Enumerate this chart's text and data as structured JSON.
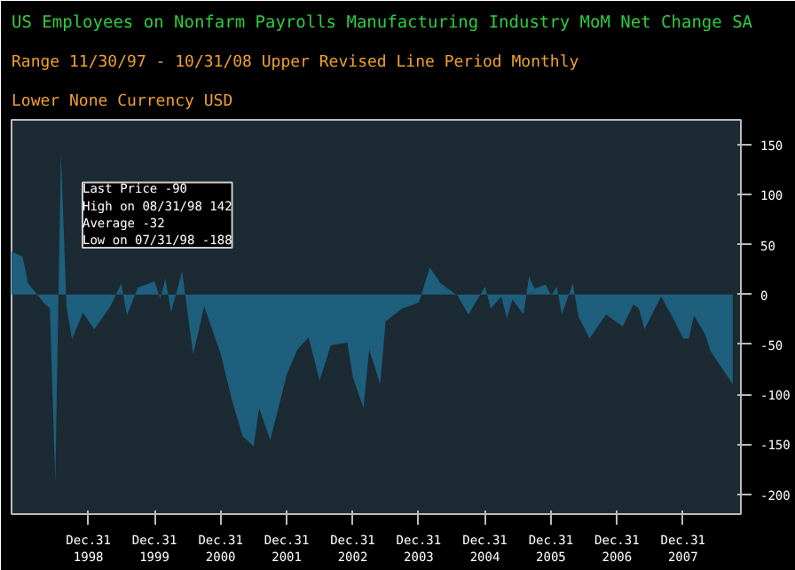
{
  "chart_data": {
    "type": "area",
    "title": "US Employees on Nonfarm Payrolls Manufacturing Industry MoM Net Change SA",
    "annotations": [
      "Range 11/30/97 - 10/31/08",
      "Upper Revised Line",
      "Period Monthly",
      "Lower None",
      "Currency USD",
      "Last Price -90\nHigh on 08/31/98 142\nAverage -32\nLow on 07/31/98 -188"
    ],
    "x": [
      "1997-11",
      "1998-01",
      "1998-02",
      "1998-05",
      "1998-06",
      "1998-07",
      "1998-08",
      "1998-09",
      "1998-10",
      "1998-12",
      "1999-02",
      "1999-05",
      "1999-07",
      "1999-08",
      "1999-10",
      "2000-01",
      "2000-02",
      "2000-03",
      "2000-04",
      "2000-06",
      "2000-08",
      "2000-10",
      "2001-01",
      "2001-03",
      "2001-05",
      "2001-07",
      "2001-08",
      "2001-10",
      "2002-01",
      "2002-03",
      "2002-05",
      "2002-07",
      "2002-09",
      "2002-12",
      "2003-01",
      "2003-03",
      "2003-04",
      "2003-06",
      "2003-07",
      "2003-10",
      "2004-01",
      "2004-03",
      "2004-05",
      "2004-08",
      "2004-10",
      "2005-01",
      "2005-02",
      "2005-04",
      "2005-05",
      "2005-06",
      "2005-08",
      "2005-09",
      "2005-10",
      "2005-12",
      "2006-01",
      "2006-02",
      "2006-03",
      "2006-05",
      "2006-06",
      "2006-08",
      "2006-11",
      "2007-02",
      "2007-04",
      "2007-05",
      "2007-06",
      "2007-09",
      "2007-11",
      "2008-01",
      "2008-02",
      "2008-03",
      "2008-05",
      "2008-06",
      "2008-10"
    ],
    "series": [
      {
        "color": "#1d5f7c",
        "values": [
          43,
          38,
          11,
          -9,
          -14,
          -188,
          142,
          -12,
          -45,
          -18,
          -35,
          -12,
          11,
          -21,
          7,
          13,
          -4,
          16,
          -18,
          23,
          -60,
          -12,
          -60,
          -104,
          -142,
          -152,
          -114,
          -146,
          -80,
          -55,
          -43,
          -86,
          -51,
          -48,
          -83,
          -114,
          -55,
          -90,
          -27,
          -14,
          -8,
          27,
          11,
          -1,
          -20,
          8,
          -14,
          -2,
          -24,
          -5,
          -20,
          18,
          6,
          10,
          -1,
          8,
          -20,
          11,
          -22,
          -44,
          -20,
          -32,
          -10,
          -14,
          -35,
          -2,
          -22,
          -44,
          -44,
          -21,
          -40,
          -57,
          -90
        ]
      }
    ],
    "xlim": [
      "1997-11",
      "2008-11-15"
    ],
    "xticks": [
      {
        "value": "1998-12-31",
        "label": "Dec.31\n1998"
      },
      {
        "value": "1999-12-31",
        "label": "Dec.31\n1999"
      },
      {
        "value": "2000-12-31",
        "label": "Dec.31\n2000"
      },
      {
        "value": "2001-12-31",
        "label": "Dec.31\n2001"
      },
      {
        "value": "2002-12-31",
        "label": "Dec.31\n2002"
      },
      {
        "value": "2003-12-31",
        "label": "Dec.31\n2003"
      },
      {
        "value": "2004-12-31",
        "label": "Dec.31\n2004"
      },
      {
        "value": "2005-12-31",
        "label": "Dec.31\n2005"
      },
      {
        "value": "2006-12-31",
        "label": "Dec.31\n2006"
      },
      {
        "value": "2007-12-31",
        "label": "Dec.31\n2007"
      }
    ],
    "ylim": [
      -220,
      175
    ],
    "yticks": [
      -200,
      -150,
      -100,
      -50,
      0,
      50,
      100,
      150
    ],
    "grid": false
  }
}
